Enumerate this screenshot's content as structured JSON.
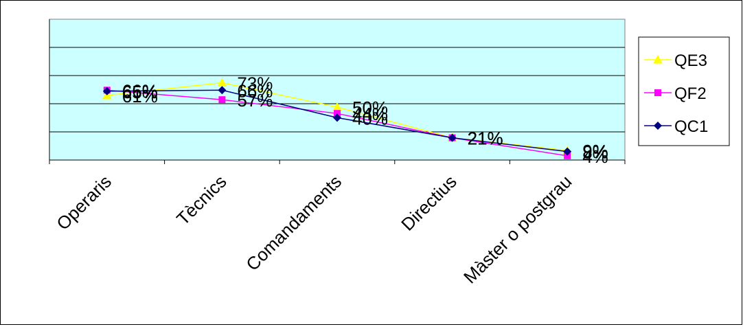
{
  "chart_data": {
    "type": "line",
    "categories": [
      "Operaris",
      "Tècnics",
      "Comandaments",
      "Directius",
      "Màster o postgrau"
    ],
    "ylim": [
      0,
      133
    ],
    "grid": true,
    "legend_position": "right",
    "series": [
      {
        "name": "QE3",
        "values": [
          61,
          73,
          50,
          21,
          9
        ],
        "labels": [
          "61%",
          "73%",
          "50%",
          "21%",
          "9%"
        ],
        "color": "#FFFF00",
        "marker": "triangle"
      },
      {
        "name": "QF2",
        "values": [
          66,
          57,
          44,
          21,
          4
        ],
        "labels": [
          "66%",
          "57%",
          "44%",
          "21%",
          "4%"
        ],
        "color": "#FF00FF",
        "marker": "square"
      },
      {
        "name": "QC1",
        "values": [
          65,
          66,
          40,
          21,
          8
        ],
        "labels": [
          "65%",
          "66%",
          "40%",
          "21%",
          "8%"
        ],
        "color": "#000080",
        "marker": "diamond"
      }
    ]
  },
  "colors": {
    "plot_background": "#CCFFFF",
    "gridline": "#000000",
    "frame": "#000000"
  }
}
